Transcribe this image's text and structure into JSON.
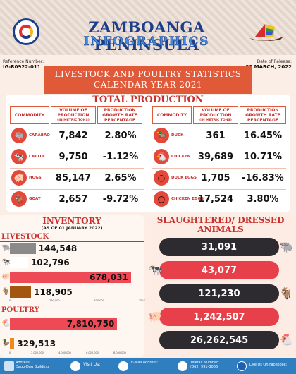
{
  "header": {
    "title_line1": "ZAMBOANGA PENINSULA",
    "title_line2": "INFOGRAPHICS",
    "reference_label": "Reference Number:",
    "reference_number": "IG-R0922-011",
    "release_label": "Date of Release:",
    "release_date": "30 MARCH, 2022"
  },
  "title": {
    "line1": "LIVESTOCK AND POULTRY STATISTICS",
    "line2": "CALENDAR YEAR 2021"
  },
  "production": {
    "heading": "TOTAL PRODUCTION",
    "col_commodity": "COMMODITY",
    "col_volume": "VOLUME OF PRODUCTION",
    "col_volume_unit": "(IN METRIC TONS)",
    "col_growth": "PRODUCTION GROWTH RATE PERCENTAGE",
    "left": [
      {
        "name": "CARABAO",
        "volume": "7,842",
        "growth": "2.80%",
        "icon": "carabao-icon"
      },
      {
        "name": "CATTLE",
        "volume": "9,750",
        "growth": "-1.12%",
        "icon": "cattle-icon"
      },
      {
        "name": "HOGS",
        "volume": "85,147",
        "growth": "2.65%",
        "icon": "hog-icon"
      },
      {
        "name": "GOAT",
        "volume": "2,657",
        "growth": "-9.72%",
        "icon": "goat-icon"
      }
    ],
    "right": [
      {
        "name": "DUCK",
        "volume": "361",
        "growth": "16.45%",
        "icon": "duck-icon"
      },
      {
        "name": "CHICKEN",
        "volume": "39,689",
        "growth": "10.71%",
        "icon": "chicken-icon"
      },
      {
        "name": "DUCK EGGS",
        "volume": "1,705",
        "growth": "-16.83%",
        "icon": "duck-eggs-icon"
      },
      {
        "name": "CHICKEN EGGS",
        "volume": "17,524",
        "growth": "3.80%",
        "icon": "chicken-eggs-icon"
      }
    ]
  },
  "inventory": {
    "heading": "INVENTORY",
    "subheading": "(AS OF 01 JANUARY 2022)",
    "livestock_label": "LIVESTOCK",
    "poultry_label": "POULTRY",
    "livestock_ticks": [
      "0",
      "250,000",
      "500,000",
      "750,000"
    ],
    "poultry_ticks": [
      "0",
      "2,000,000",
      "4,000,000",
      "6,000,000",
      "8,000,000"
    ]
  },
  "slaughtered": {
    "heading_line1": "SLAUGHTERED/ DRESSED",
    "heading_line2": "ANIMALS"
  },
  "chart_data": [
    {
      "type": "bar",
      "title": "LIVESTOCK",
      "categories": [
        "Carabao",
        "Cattle",
        "Hogs",
        "Goat"
      ],
      "values": [
        144548,
        102796,
        678031,
        118905
      ],
      "labels": [
        "144,548",
        "102,796",
        "678,031",
        "118,905"
      ],
      "colors": [
        "#8a8a8a",
        "#ffffff",
        "#ee4a55",
        "#a3560f"
      ],
      "xlim": [
        0,
        750000
      ]
    },
    {
      "type": "bar",
      "title": "POULTRY",
      "categories": [
        "Chicken",
        "Duck"
      ],
      "values": [
        7810750,
        329513
      ],
      "labels": [
        "7,810,750",
        "329,513"
      ],
      "colors": [
        "#ee4a55",
        "#f08a1c"
      ],
      "xlim": [
        0,
        8000000
      ]
    },
    {
      "type": "bar",
      "title": "SLAUGHTERED/ DRESSED ANIMALS",
      "categories": [
        "Carabao",
        "Cattle",
        "Goat",
        "Hogs",
        "Chicken"
      ],
      "values": [
        31091,
        43077,
        121230,
        1242507,
        26262545
      ],
      "labels": [
        "31,091",
        "43,077",
        "121,230",
        "1,242,507",
        "26,262,545"
      ]
    }
  ],
  "footer": {
    "address_label": "Address:",
    "address_value": "Dago-Dag Building",
    "visit_label": "Visit Us:",
    "email_label": "E-Mail Address:",
    "phone_label": "Telefax Number:",
    "phone_value": "(062) 991-3066",
    "facebook_label": "Like Us On Facebook:"
  }
}
